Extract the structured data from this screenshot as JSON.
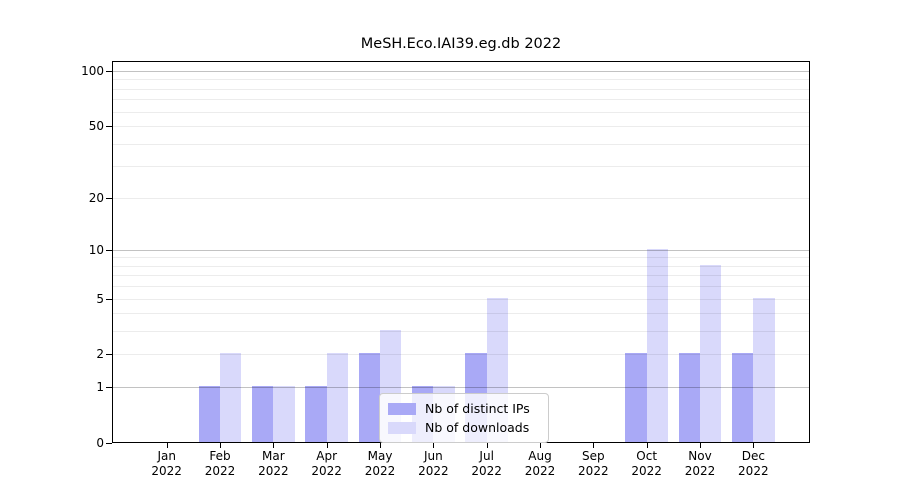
{
  "title": "MeSH.Eco.IAI39.eg.db 2022",
  "colors": {
    "distinct_ips": "#a9a9f6",
    "downloads": "#d9d9fb",
    "grid_major": "#c2c2c2",
    "grid_minor": "#ececec",
    "axis": "#000000",
    "legend_border": "#cccccc",
    "background": "#ffffff"
  },
  "legend": {
    "entries": [
      "Nb of distinct IPs",
      "Nb of downloads"
    ]
  },
  "chart_data": {
    "type": "bar",
    "title": "MeSH.Eco.IAI39.eg.db 2022",
    "months": [
      "Jan",
      "Feb",
      "Mar",
      "Apr",
      "May",
      "Jun",
      "Jul",
      "Aug",
      "Sep",
      "Oct",
      "Nov",
      "Dec"
    ],
    "year": "2022",
    "categories": [
      "Jan 2022",
      "Feb 2022",
      "Mar 2022",
      "Apr 2022",
      "May 2022",
      "Jun 2022",
      "Jul 2022",
      "Aug 2022",
      "Sep 2022",
      "Oct 2022",
      "Nov 2022",
      "Dec 2022"
    ],
    "series": [
      {
        "name": "Nb of distinct IPs",
        "color": "#a9a9f6",
        "values": [
          0,
          1,
          1,
          1,
          2,
          1,
          2,
          0,
          0,
          2,
          2,
          2
        ]
      },
      {
        "name": "Nb of downloads",
        "color": "#d9d9fb",
        "values": [
          0,
          2,
          1,
          2,
          3,
          1,
          5,
          0,
          0,
          10,
          8,
          5
        ]
      }
    ],
    "yscale": "log1p",
    "ylim": [
      0,
      113
    ],
    "yticks": [
      0,
      1,
      2,
      5,
      10,
      20,
      50,
      100
    ],
    "ytick_labels": [
      "0",
      "1",
      "2",
      "5",
      "10",
      "20",
      "50",
      "100"
    ],
    "major_yticks": [
      1,
      10,
      100
    ],
    "minor_yticks": [
      2,
      3,
      4,
      5,
      6,
      7,
      8,
      9,
      20,
      30,
      40,
      50,
      60,
      70,
      80,
      90
    ],
    "grid": true,
    "legend_position": "lower center"
  }
}
